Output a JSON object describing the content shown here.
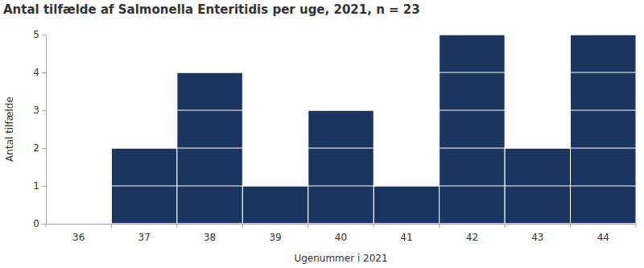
{
  "chart_data": {
    "type": "bar",
    "title": "Antal tilfælde af Salmonella Enteritidis per uge, 2021, n = 23",
    "x_label": "Ugenummer i 2021",
    "y_label": "Antal tilfælde",
    "categories": [
      "36",
      "37",
      "38",
      "39",
      "40",
      "41",
      "42",
      "43",
      "44"
    ],
    "values": [
      0,
      2,
      4,
      1,
      3,
      1,
      5,
      2,
      5
    ],
    "color": "#1a3660",
    "ylim": [
      0,
      5
    ],
    "yticks": [
      0,
      1,
      2,
      3,
      4,
      5
    ],
    "grid": true
  }
}
